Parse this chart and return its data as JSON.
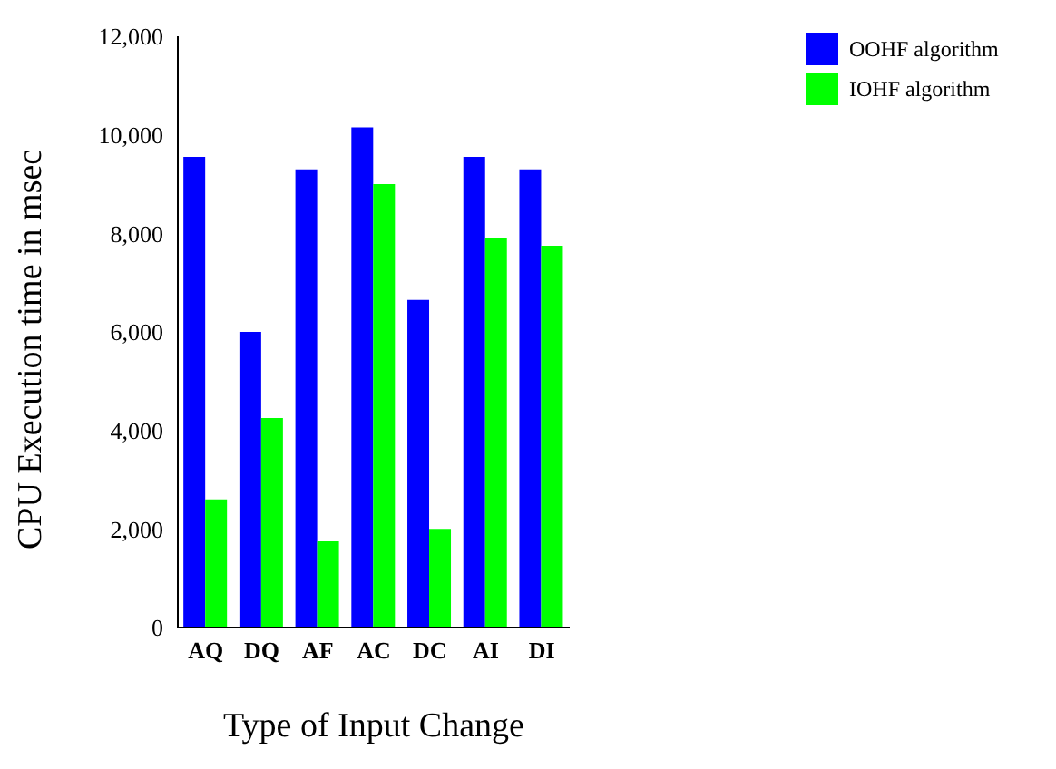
{
  "chart_data": {
    "type": "bar",
    "xlabel": "Type of Input Change",
    "ylabel": "CPU Execution time in msec",
    "categories": [
      "AQ",
      "DQ",
      "AF",
      "AC",
      "DC",
      "AI",
      "DI"
    ],
    "series": [
      {
        "name": "OOHF algorithm",
        "color": "#0000ff",
        "values": [
          9550,
          6000,
          9300,
          10150,
          6650,
          9550,
          9300
        ]
      },
      {
        "name": "IOHF algorithm",
        "color": "#00ff00",
        "values": [
          2600,
          4250,
          1750,
          9000,
          2000,
          7900,
          7750
        ]
      }
    ],
    "ylim": [
      0,
      12000
    ],
    "yticks": [
      0,
      {
        "value": 2000,
        "label": "2,000"
      },
      {
        "value": 4000,
        "label": "4,000"
      },
      {
        "value": 6000,
        "label": "6,000"
      },
      {
        "value": 8000,
        "label": "8,000"
      },
      {
        "value": 10000,
        "label": "10,000"
      },
      {
        "value": 12000,
        "label": "12,000"
      }
    ],
    "grid": false,
    "legend": "top right"
  }
}
